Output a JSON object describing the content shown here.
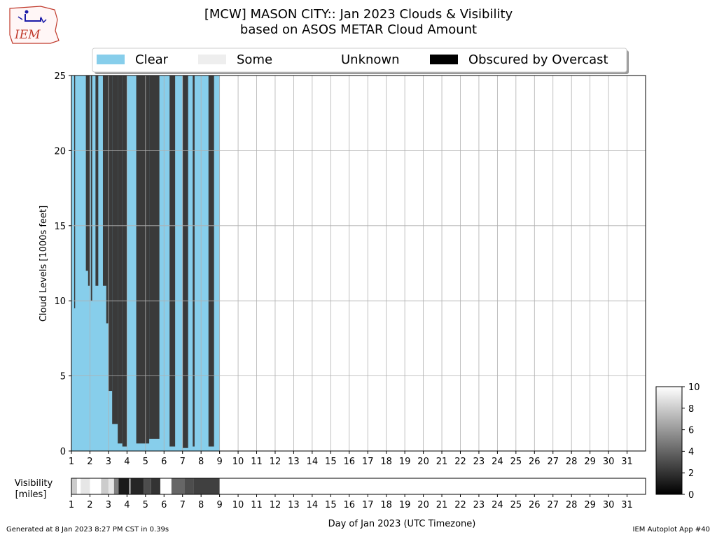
{
  "header": {
    "logo_text": "IEM",
    "title": "[MCW] MASON CITY:: Jan 2023 Clouds & Visibility",
    "subtitle": "based on ASOS METAR Cloud Amount"
  },
  "legend": [
    {
      "label": "Clear",
      "color": "#87ceeb"
    },
    {
      "label": "Some",
      "color": "#eeeeee"
    },
    {
      "label": "Unknown",
      "color": "#ffffff"
    },
    {
      "label": "Obscured by Overcast",
      "color": "#000000"
    }
  ],
  "footer": {
    "generated": "Generated at 8 Jan 2023 8:27 PM CST in 0.39s",
    "app": "IEM Autoplot App #40"
  },
  "chart_data": [
    {
      "type": "area",
      "ylabel": "Cloud Levels [1000s feet]",
      "xlim": [
        1,
        32
      ],
      "ylim": [
        0,
        25
      ],
      "yticks": [
        0,
        5,
        10,
        15,
        20,
        25
      ],
      "xticks": [
        1,
        2,
        3,
        4,
        5,
        6,
        7,
        8,
        9,
        10,
        11,
        12,
        13,
        14,
        15,
        16,
        17,
        18,
        19,
        20,
        21,
        22,
        23,
        24,
        25,
        26,
        27,
        28,
        29,
        30,
        31
      ],
      "grid": true,
      "legend_position": "top",
      "colors": {
        "clear": "#87ceeb",
        "overcast": "#3a3a3a",
        "some": "#eeeeee"
      },
      "clear_period": [
        1.0,
        9.0
      ],
      "overcast_segments": [
        {
          "start": 1.15,
          "end": 1.2,
          "base": 9.5
        },
        {
          "start": 1.78,
          "end": 1.95,
          "base": 12
        },
        {
          "start": 1.9,
          "end": 2.0,
          "base": 11
        },
        {
          "start": 2.05,
          "end": 2.12,
          "base": 10
        },
        {
          "start": 2.3,
          "end": 2.45,
          "base": 11
        },
        {
          "start": 2.7,
          "end": 2.9,
          "base": 11
        },
        {
          "start": 2.88,
          "end": 3.0,
          "base": 8.5
        },
        {
          "start": 3.0,
          "end": 3.2,
          "base": 4
        },
        {
          "start": 3.2,
          "end": 3.5,
          "base": 1.8
        },
        {
          "start": 3.5,
          "end": 3.75,
          "base": 0.5
        },
        {
          "start": 3.75,
          "end": 4.0,
          "base": 0.3
        },
        {
          "start": 4.5,
          "end": 5.2,
          "base": 0.5
        },
        {
          "start": 5.2,
          "end": 5.75,
          "base": 0.8
        },
        {
          "start": 6.3,
          "end": 6.6,
          "base": 0.3
        },
        {
          "start": 7.0,
          "end": 7.3,
          "base": 0.2
        },
        {
          "start": 7.55,
          "end": 7.65,
          "base": 0.3
        },
        {
          "start": 8.4,
          "end": 8.7,
          "base": 0.3
        }
      ]
    },
    {
      "type": "heatmap",
      "ylabel": "Visibility\n[miles]",
      "xlabel": "Day of Jan 2023 (UTC Timezone)",
      "xlim": [
        1,
        32
      ],
      "visibility": [
        {
          "start": 1.0,
          "end": 1.3,
          "value": 8
        },
        {
          "start": 1.5,
          "end": 2.0,
          "value": 9
        },
        {
          "start": 2.6,
          "end": 3.0,
          "value": 8
        },
        {
          "start": 3.0,
          "end": 3.3,
          "value": 9
        },
        {
          "start": 3.3,
          "end": 3.55,
          "value": 5
        },
        {
          "start": 3.55,
          "end": 4.1,
          "value": 1
        },
        {
          "start": 4.1,
          "end": 4.2,
          "value": 6
        },
        {
          "start": 4.2,
          "end": 4.9,
          "value": 1.5
        },
        {
          "start": 4.9,
          "end": 5.3,
          "value": 3
        },
        {
          "start": 5.3,
          "end": 5.8,
          "value": 2
        },
        {
          "start": 5.8,
          "end": 6.4,
          "value": 10
        },
        {
          "start": 6.4,
          "end": 7.1,
          "value": 4
        },
        {
          "start": 7.1,
          "end": 7.6,
          "value": 3
        },
        {
          "start": 7.6,
          "end": 9.0,
          "value": 2.5
        }
      ]
    },
    {
      "type": "colorbar",
      "ticks": [
        0,
        2,
        4,
        6,
        8,
        10
      ],
      "range": [
        0,
        10
      ]
    }
  ]
}
